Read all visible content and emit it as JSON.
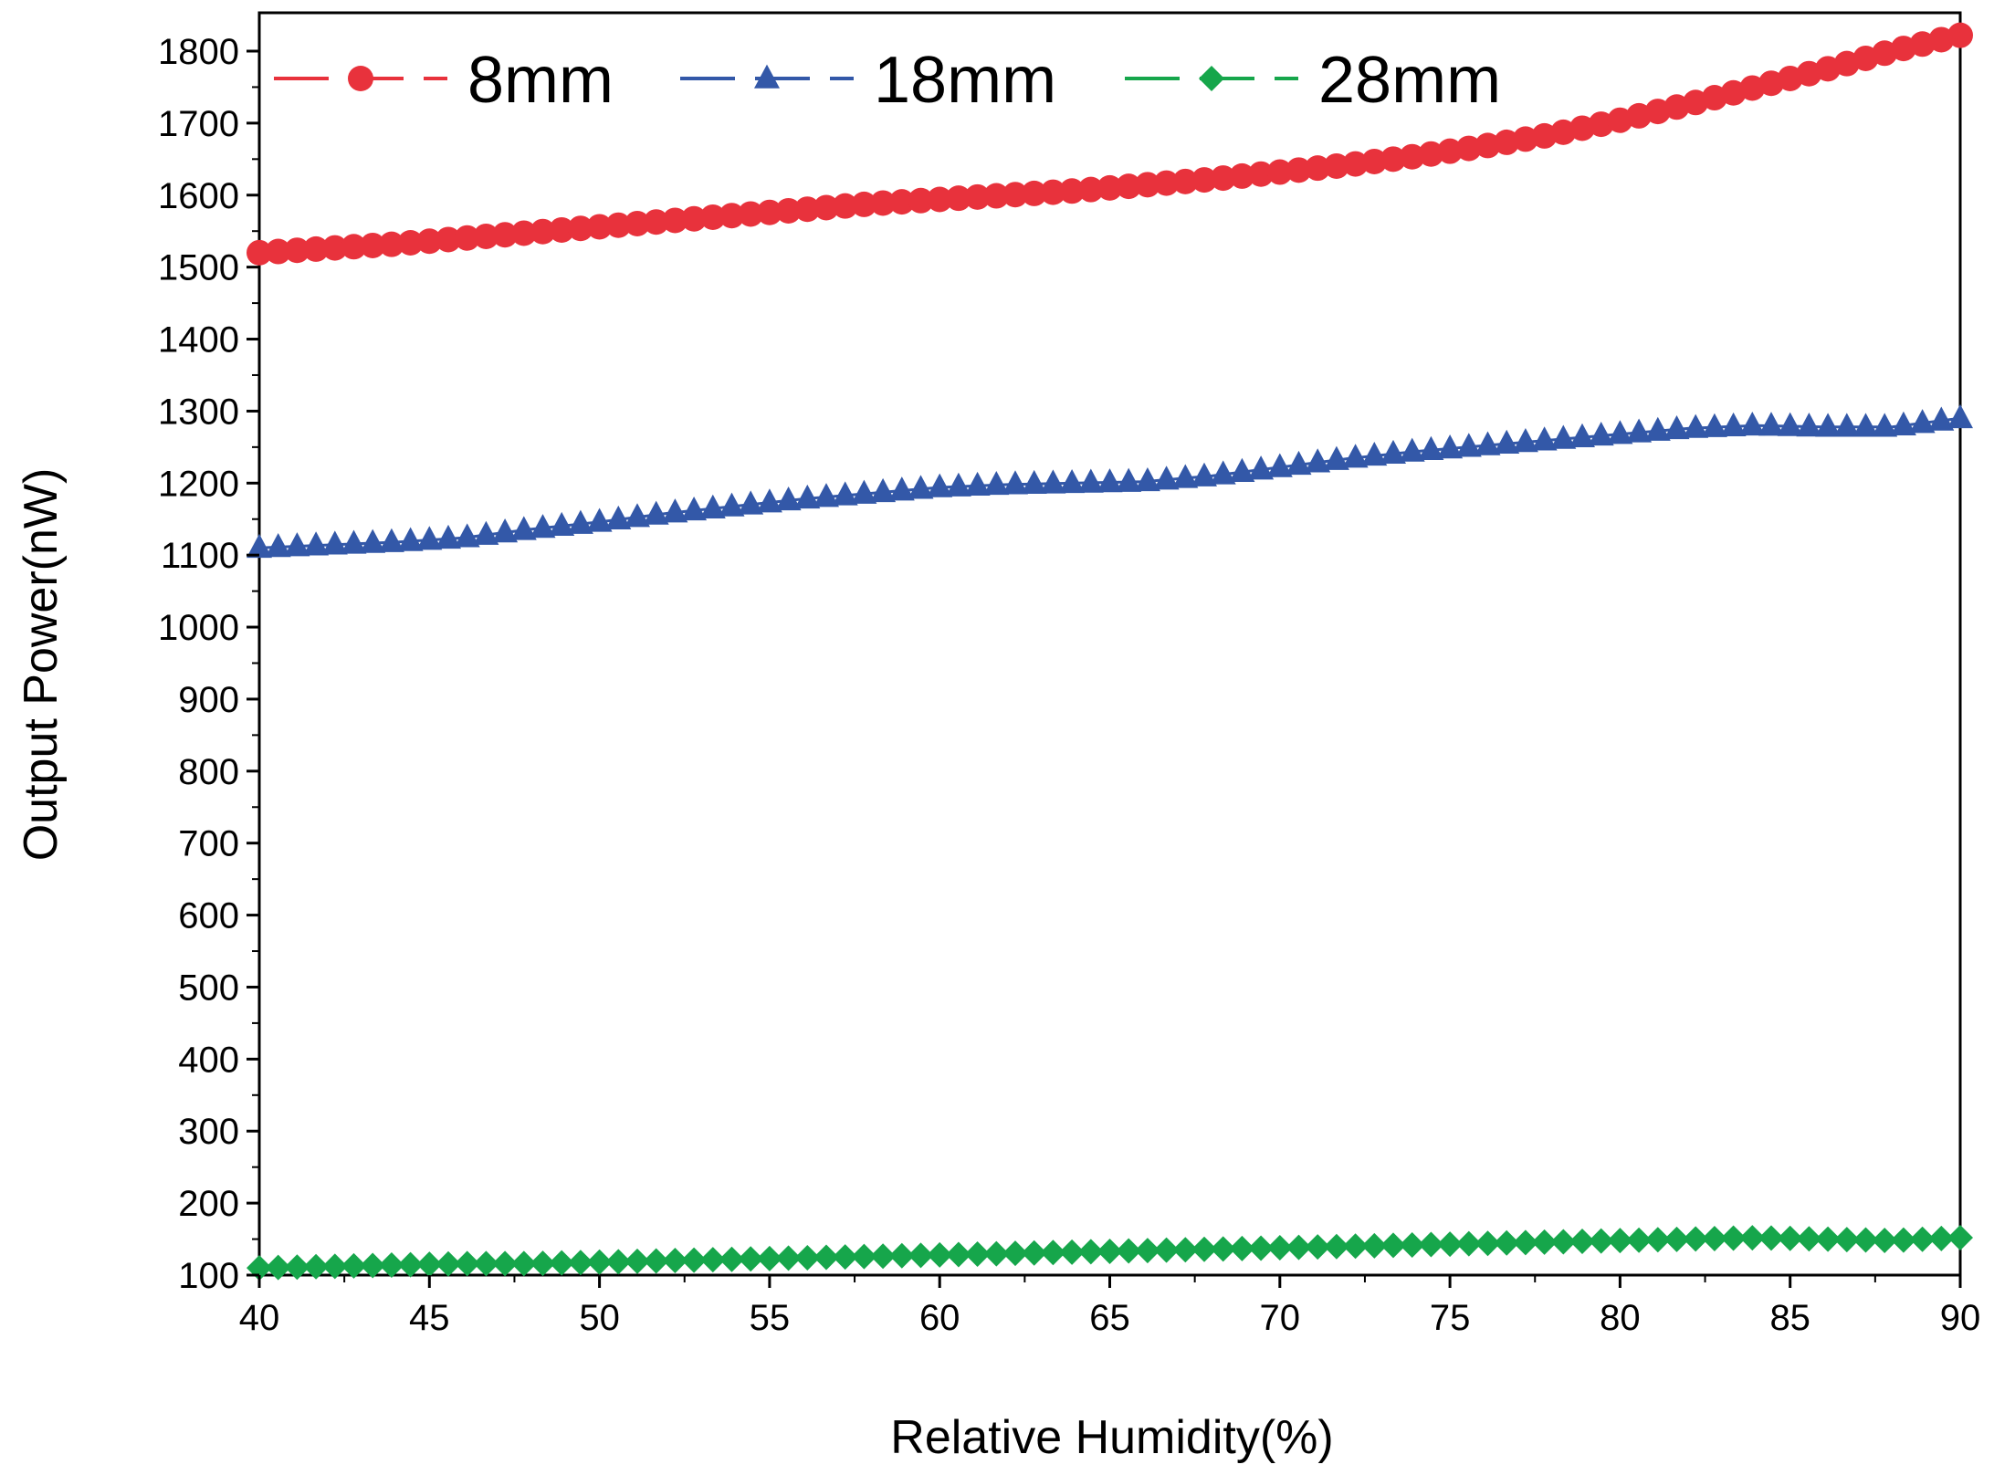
{
  "chart_data": {
    "type": "line",
    "title": "",
    "xlabel": "Relative Humidity(%)",
    "ylabel": "Output Power(nW)",
    "xlim": [
      40,
      90
    ],
    "ylim": [
      100,
      1850
    ],
    "xticks": [
      "40",
      "45",
      "50",
      "55",
      "60",
      "65",
      "70",
      "75",
      "80",
      "85",
      "90"
    ],
    "yticks": [
      "100",
      "200",
      "300",
      "400",
      "500",
      "600",
      "700",
      "800",
      "900",
      "1000",
      "1100",
      "1200",
      "1300",
      "1400",
      "1500",
      "1600",
      "1700",
      "1800"
    ],
    "grid": false,
    "legend": "top-left",
    "series": [
      {
        "name": "8mm",
        "color": "#e8323c",
        "marker": "circle",
        "x": [
          40,
          42,
          44,
          46,
          48,
          50,
          52,
          54,
          56,
          58,
          60,
          62,
          64,
          66,
          68,
          70,
          72,
          74,
          76,
          78,
          80,
          82,
          84,
          86,
          88,
          90
        ],
        "y": [
          1520,
          1526,
          1532,
          1540,
          1548,
          1556,
          1564,
          1572,
          1580,
          1588,
          1594,
          1600,
          1606,
          1614,
          1622,
          1632,
          1642,
          1654,
          1668,
          1684,
          1704,
          1726,
          1750,
          1774,
          1800,
          1822
        ]
      },
      {
        "name": "18mm",
        "color": "#3358a8",
        "marker": "triangle",
        "x": [
          40,
          42,
          44,
          46,
          48,
          50,
          52,
          54,
          56,
          58,
          60,
          62,
          64,
          66,
          68,
          70,
          72,
          74,
          76,
          78,
          80,
          82,
          84,
          86,
          88,
          90
        ],
        "y": [
          1110,
          1114,
          1118,
          1124,
          1136,
          1146,
          1158,
          1168,
          1178,
          1186,
          1194,
          1198,
          1200,
          1202,
          1210,
          1222,
          1234,
          1244,
          1252,
          1260,
          1268,
          1276,
          1280,
          1278,
          1278,
          1290
        ]
      },
      {
        "name": "28mm",
        "color": "#16a64b",
        "marker": "diamond",
        "x": [
          40,
          42,
          44,
          46,
          48,
          50,
          52,
          54,
          56,
          58,
          60,
          62,
          64,
          66,
          68,
          70,
          72,
          74,
          76,
          78,
          80,
          82,
          84,
          86,
          88,
          90
        ],
        "y": [
          110,
          112,
          114,
          116,
          116,
          118,
          120,
          122,
          124,
          126,
          128,
          130,
          132,
          134,
          136,
          138,
          140,
          142,
          144,
          146,
          148,
          150,
          152,
          150,
          148,
          152
        ]
      }
    ]
  }
}
